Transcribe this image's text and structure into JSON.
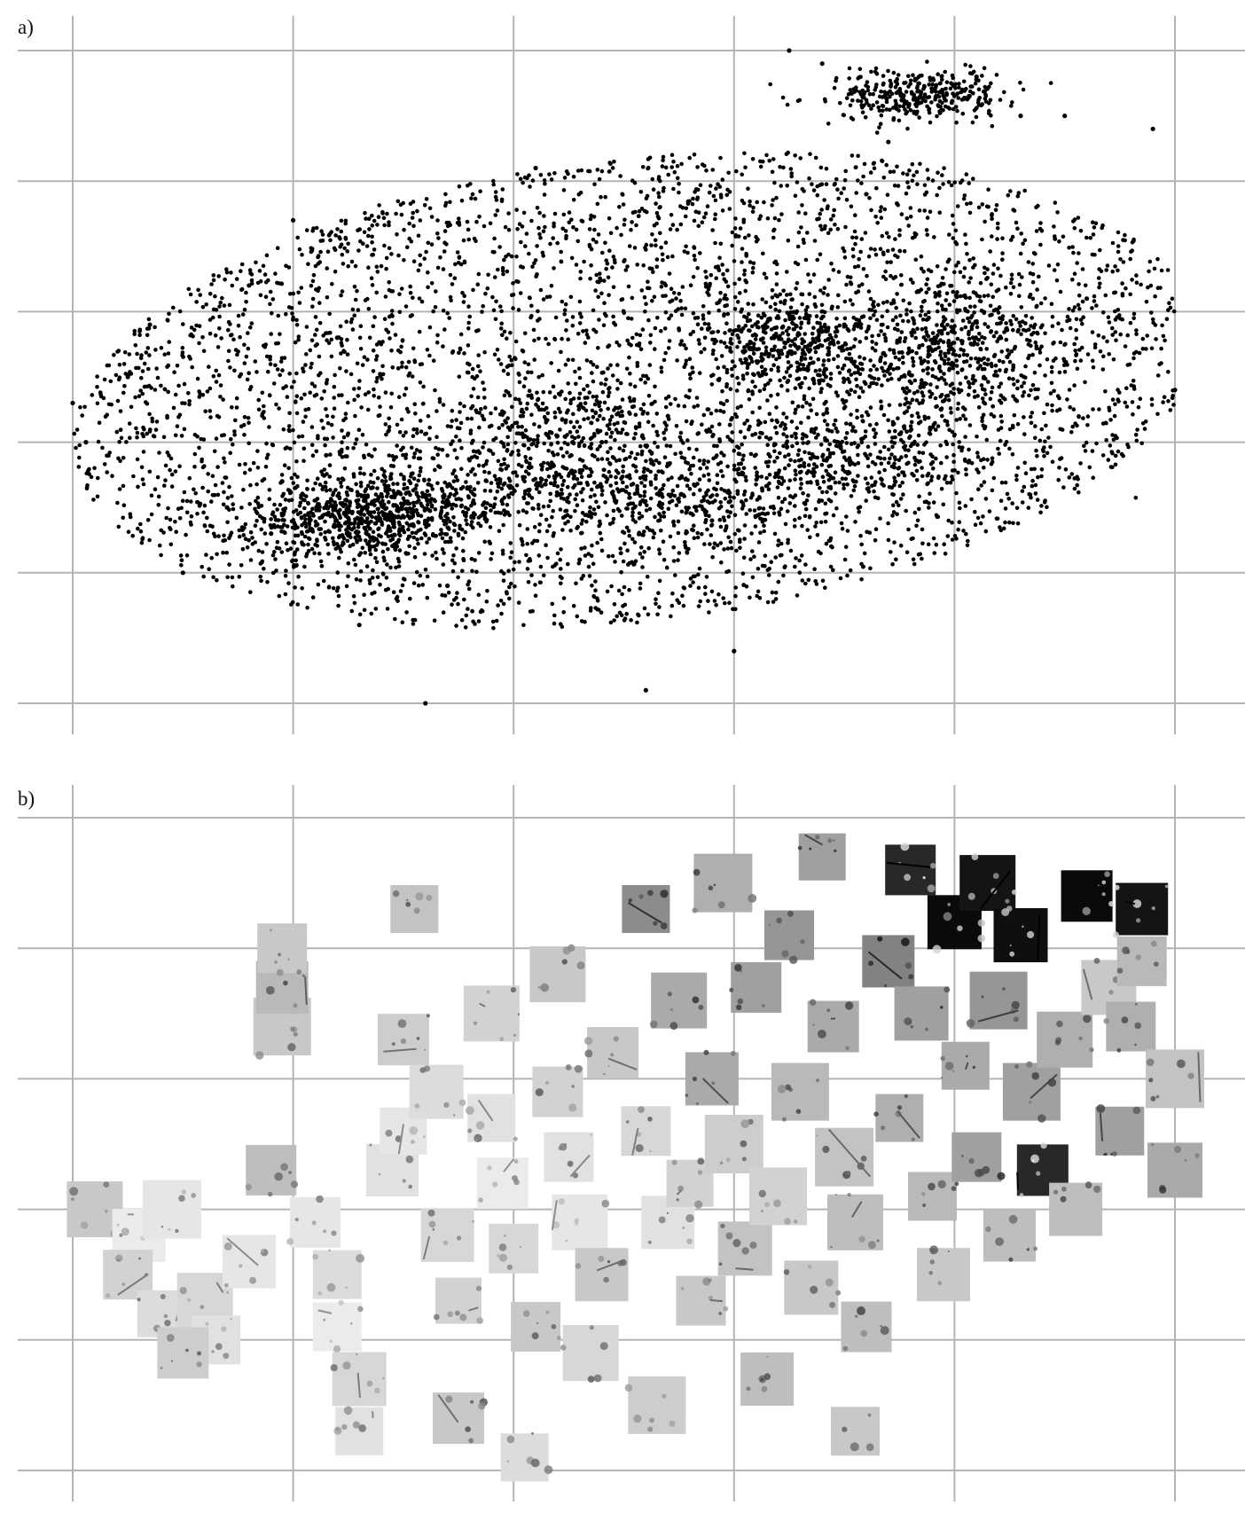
{
  "panels": [
    {
      "label": "a)"
    },
    {
      "label": "b)"
    }
  ],
  "colors": {
    "grid": "#b4b4b4",
    "point": "#000000",
    "background": "#ffffff"
  },
  "chart_data": [
    {
      "type": "scatter",
      "panel": "a)",
      "title": "",
      "xlabel": "",
      "ylabel": "",
      "grid": true,
      "legend": "none",
      "xlim": [
        0,
        5
      ],
      "ylim": [
        0,
        5
      ],
      "x_gridlines": [
        0,
        1,
        2,
        3,
        4,
        5
      ],
      "y_gridlines": [
        0,
        1,
        2,
        3,
        4,
        5
      ],
      "point_count_estimate": 9000,
      "x": [
        0.0,
        0.06,
        0.25,
        0.35,
        0.5,
        0.7,
        0.9,
        1.0,
        1.2,
        1.6,
        1.7,
        2.3,
        2.6,
        3.0,
        3.2,
        3.4,
        3.7,
        3.9,
        4.3,
        4.5,
        4.9,
        5.0,
        3.25,
        4.1,
        0.95,
        1.15,
        3.6,
        0.8,
        2.7,
        1.4,
        2.4,
        2.9,
        3.5,
        4.6,
        1.3,
        2.1
      ],
      "y": [
        2.3,
        2.0,
        2.5,
        2.9,
        1.0,
        1.5,
        1.3,
        3.7,
        2.8,
        0.0,
        0.9,
        1.1,
        0.1,
        0.4,
        2.7,
        4.9,
        4.3,
        4.7,
        4.5,
        4.5,
        4.4,
        2.4,
        5.0,
        4.8,
        1.7,
        1.9,
        3.9,
        3.2,
        2.2,
        1.6,
        2.0,
        1.4,
        2.9,
        3.1,
        0.6,
        4.1
      ]
    },
    {
      "type": "scatter",
      "panel": "b)",
      "title": "",
      "xlabel": "",
      "ylabel": "",
      "grid": true,
      "legend": "none",
      "xlim": [
        0,
        5
      ],
      "ylim": [
        0,
        5
      ],
      "x_gridlines": [
        0,
        1,
        2,
        3,
        4,
        5
      ],
      "y_gridlines": [
        0,
        1,
        2,
        3,
        4,
        5
      ],
      "marker": "thumbnail-image",
      "thumbnails": [
        {
          "x": 0.1,
          "y": 2.0,
          "tone": 200
        },
        {
          "x": 0.3,
          "y": 1.8,
          "tone": 235
        },
        {
          "x": 0.45,
          "y": 2.0,
          "tone": 230
        },
        {
          "x": 0.25,
          "y": 1.5,
          "tone": 210
        },
        {
          "x": 0.4,
          "y": 1.2,
          "tone": 220
        },
        {
          "x": 0.6,
          "y": 1.3,
          "tone": 215
        },
        {
          "x": 0.65,
          "y": 1.0,
          "tone": 225
        },
        {
          "x": 0.5,
          "y": 0.9,
          "tone": 205
        },
        {
          "x": 0.8,
          "y": 1.6,
          "tone": 230
        },
        {
          "x": 0.9,
          "y": 2.3,
          "tone": 190
        },
        {
          "x": 0.95,
          "y": 3.4,
          "tone": 200
        },
        {
          "x": 0.95,
          "y": 3.7,
          "tone": 185
        },
        {
          "x": 0.95,
          "y": 4.0,
          "tone": 200
        },
        {
          "x": 1.1,
          "y": 1.9,
          "tone": 230
        },
        {
          "x": 1.2,
          "y": 1.5,
          "tone": 220
        },
        {
          "x": 1.2,
          "y": 1.1,
          "tone": 235
        },
        {
          "x": 1.3,
          "y": 0.7,
          "tone": 215
        },
        {
          "x": 1.3,
          "y": 0.3,
          "tone": 225
        },
        {
          "x": 1.45,
          "y": 2.3,
          "tone": 225
        },
        {
          "x": 1.5,
          "y": 2.6,
          "tone": 230
        },
        {
          "x": 1.5,
          "y": 3.3,
          "tone": 205
        },
        {
          "x": 1.55,
          "y": 4.3,
          "tone": 195
        },
        {
          "x": 1.65,
          "y": 2.9,
          "tone": 220
        },
        {
          "x": 1.7,
          "y": 1.8,
          "tone": 215
        },
        {
          "x": 1.75,
          "y": 1.3,
          "tone": 210
        },
        {
          "x": 1.75,
          "y": 0.4,
          "tone": 200
        },
        {
          "x": 1.9,
          "y": 2.7,
          "tone": 225
        },
        {
          "x": 1.9,
          "y": 3.5,
          "tone": 210
        },
        {
          "x": 1.95,
          "y": 2.2,
          "tone": 235
        },
        {
          "x": 2.0,
          "y": 1.7,
          "tone": 215
        },
        {
          "x": 2.05,
          "y": 0.1,
          "tone": 220
        },
        {
          "x": 2.1,
          "y": 1.1,
          "tone": 200
        },
        {
          "x": 2.2,
          "y": 3.8,
          "tone": 200
        },
        {
          "x": 2.2,
          "y": 2.9,
          "tone": 210
        },
        {
          "x": 2.25,
          "y": 2.4,
          "tone": 225
        },
        {
          "x": 2.3,
          "y": 1.9,
          "tone": 230
        },
        {
          "x": 2.35,
          "y": 0.9,
          "tone": 215
        },
        {
          "x": 2.4,
          "y": 1.5,
          "tone": 200
        },
        {
          "x": 2.45,
          "y": 3.2,
          "tone": 200
        },
        {
          "x": 2.6,
          "y": 4.3,
          "tone": 140
        },
        {
          "x": 2.6,
          "y": 2.6,
          "tone": 215
        },
        {
          "x": 2.65,
          "y": 0.5,
          "tone": 205
        },
        {
          "x": 2.7,
          "y": 1.9,
          "tone": 225
        },
        {
          "x": 2.75,
          "y": 3.6,
          "tone": 170
        },
        {
          "x": 2.8,
          "y": 2.2,
          "tone": 210
        },
        {
          "x": 2.85,
          "y": 1.3,
          "tone": 200
        },
        {
          "x": 2.9,
          "y": 3.0,
          "tone": 170
        },
        {
          "x": 2.95,
          "y": 4.5,
          "tone": 175
        },
        {
          "x": 3.0,
          "y": 2.5,
          "tone": 205
        },
        {
          "x": 3.05,
          "y": 1.7,
          "tone": 195
        },
        {
          "x": 3.1,
          "y": 3.7,
          "tone": 160
        },
        {
          "x": 3.15,
          "y": 0.7,
          "tone": 190
        },
        {
          "x": 3.2,
          "y": 2.1,
          "tone": 210
        },
        {
          "x": 3.25,
          "y": 4.1,
          "tone": 150
        },
        {
          "x": 3.3,
          "y": 2.9,
          "tone": 185
        },
        {
          "x": 3.35,
          "y": 1.4,
          "tone": 200
        },
        {
          "x": 3.4,
          "y": 4.7,
          "tone": 160
        },
        {
          "x": 3.45,
          "y": 3.4,
          "tone": 170
        },
        {
          "x": 3.5,
          "y": 2.4,
          "tone": 195
        },
        {
          "x": 3.55,
          "y": 1.9,
          "tone": 190
        },
        {
          "x": 3.55,
          "y": 0.3,
          "tone": 200
        },
        {
          "x": 3.6,
          "y": 1.1,
          "tone": 190
        },
        {
          "x": 3.7,
          "y": 3.9,
          "tone": 130
        },
        {
          "x": 3.75,
          "y": 2.7,
          "tone": 175
        },
        {
          "x": 3.8,
          "y": 4.6,
          "tone": 40
        },
        {
          "x": 3.85,
          "y": 3.5,
          "tone": 160
        },
        {
          "x": 3.9,
          "y": 2.1,
          "tone": 185
        },
        {
          "x": 3.95,
          "y": 1.5,
          "tone": 200
        },
        {
          "x": 4.0,
          "y": 4.2,
          "tone": 10
        },
        {
          "x": 4.05,
          "y": 3.1,
          "tone": 170
        },
        {
          "x": 4.1,
          "y": 2.4,
          "tone": 160
        },
        {
          "x": 4.15,
          "y": 4.5,
          "tone": 20
        },
        {
          "x": 4.2,
          "y": 3.6,
          "tone": 150
        },
        {
          "x": 4.25,
          "y": 1.8,
          "tone": 190
        },
        {
          "x": 4.3,
          "y": 4.1,
          "tone": 15
        },
        {
          "x": 4.35,
          "y": 2.9,
          "tone": 160
        },
        {
          "x": 4.4,
          "y": 2.3,
          "tone": 40
        },
        {
          "x": 4.5,
          "y": 3.3,
          "tone": 175
        },
        {
          "x": 4.55,
          "y": 2.0,
          "tone": 190
        },
        {
          "x": 4.6,
          "y": 4.4,
          "tone": 10
        },
        {
          "x": 4.7,
          "y": 3.7,
          "tone": 200
        },
        {
          "x": 4.75,
          "y": 2.6,
          "tone": 160
        },
        {
          "x": 4.8,
          "y": 3.4,
          "tone": 175
        },
        {
          "x": 4.85,
          "y": 4.3,
          "tone": 20
        },
        {
          "x": 4.85,
          "y": 3.9,
          "tone": 185
        },
        {
          "x": 5.0,
          "y": 3.0,
          "tone": 195
        },
        {
          "x": 5.0,
          "y": 2.3,
          "tone": 170
        }
      ]
    }
  ]
}
